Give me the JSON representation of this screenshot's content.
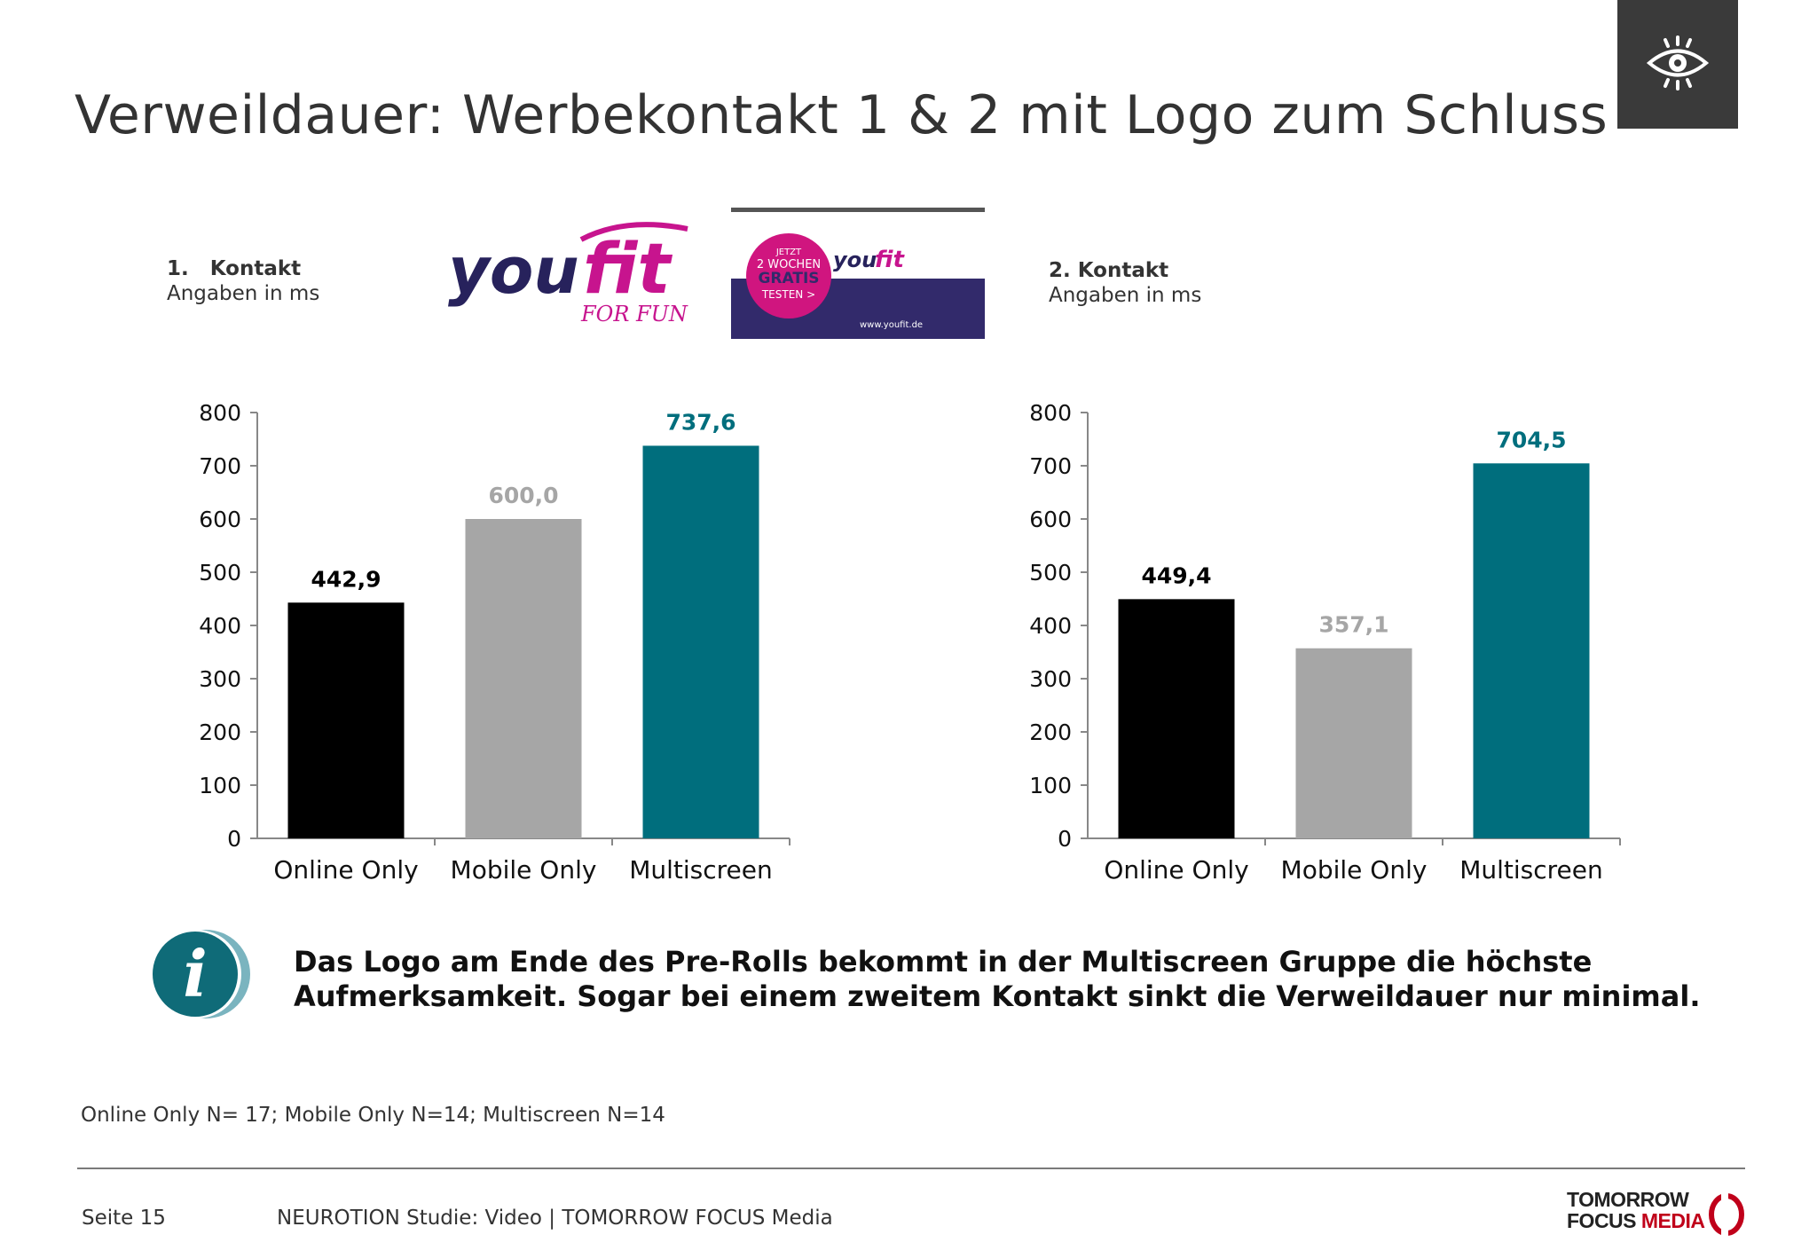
{
  "title": "Verweildauer: Werbekontakt 1 & 2 mit Logo zum Schluss",
  "header_icon": "eye-icon",
  "contact1": {
    "label": "1.   Kontakt",
    "unit": "Angaben in ms"
  },
  "contact2": {
    "label": "2. Kontakt",
    "unit": "Angaben in ms"
  },
  "ad": {
    "brand": "you",
    "brand_fit": "fit",
    "brand_tagline": "FOR FUN",
    "badge_line1": "JETZT",
    "badge_line2": "2 WOCHEN",
    "badge_line3": "GRATIS",
    "badge_line4": "TESTEN >",
    "url": "www.youfit.de"
  },
  "chart_data": [
    {
      "type": "bar",
      "categories": [
        "Online Only",
        "Mobile Only",
        "Multiscreen"
      ],
      "values": [
        442.9,
        600.0,
        737.6
      ],
      "value_labels": [
        "442,9",
        "600,0",
        "737,6"
      ],
      "ylim": [
        0,
        800
      ],
      "yticks": [
        "0",
        "100",
        "200",
        "300",
        "400",
        "500",
        "600",
        "700",
        "800"
      ],
      "colors": [
        "#000000",
        "#a6a6a6",
        "#006e7d"
      ],
      "label_colors": [
        "#000000",
        "#a6a6a6",
        "#006e7d"
      ]
    },
    {
      "type": "bar",
      "categories": [
        "Online Only",
        "Mobile Only",
        "Multiscreen"
      ],
      "values": [
        449.4,
        357.1,
        704.5
      ],
      "value_labels": [
        "449,4",
        "357,1",
        "704,5"
      ],
      "ylim": [
        0,
        800
      ],
      "yticks": [
        "0",
        "100",
        "200",
        "300",
        "400",
        "500",
        "600",
        "700",
        "800"
      ],
      "colors": [
        "#000000",
        "#a6a6a6",
        "#006e7d"
      ],
      "label_colors": [
        "#000000",
        "#a6a6a6",
        "#006e7d"
      ]
    }
  ],
  "info": {
    "icon": "info-icon",
    "letter": "i",
    "text_line1": "Das Logo am Ende des Pre-Rolls bekommt in der Multiscreen Gruppe die höchste",
    "text_line2": "Aufmerksamkeit. Sogar bei einem zweitem Kontakt sinkt die Verweildauer nur minimal."
  },
  "footnote": "Online Only N= 17; Mobile Only N=14; Multiscreen N=14",
  "footer": {
    "page": "Seite 15",
    "study": "NEUROTION Studie: Video | TOMORROW FOCUS Media",
    "logo_line1": "TOMORROW",
    "logo_line2a": "FOCUS",
    "logo_line2b": "MEDIA"
  }
}
